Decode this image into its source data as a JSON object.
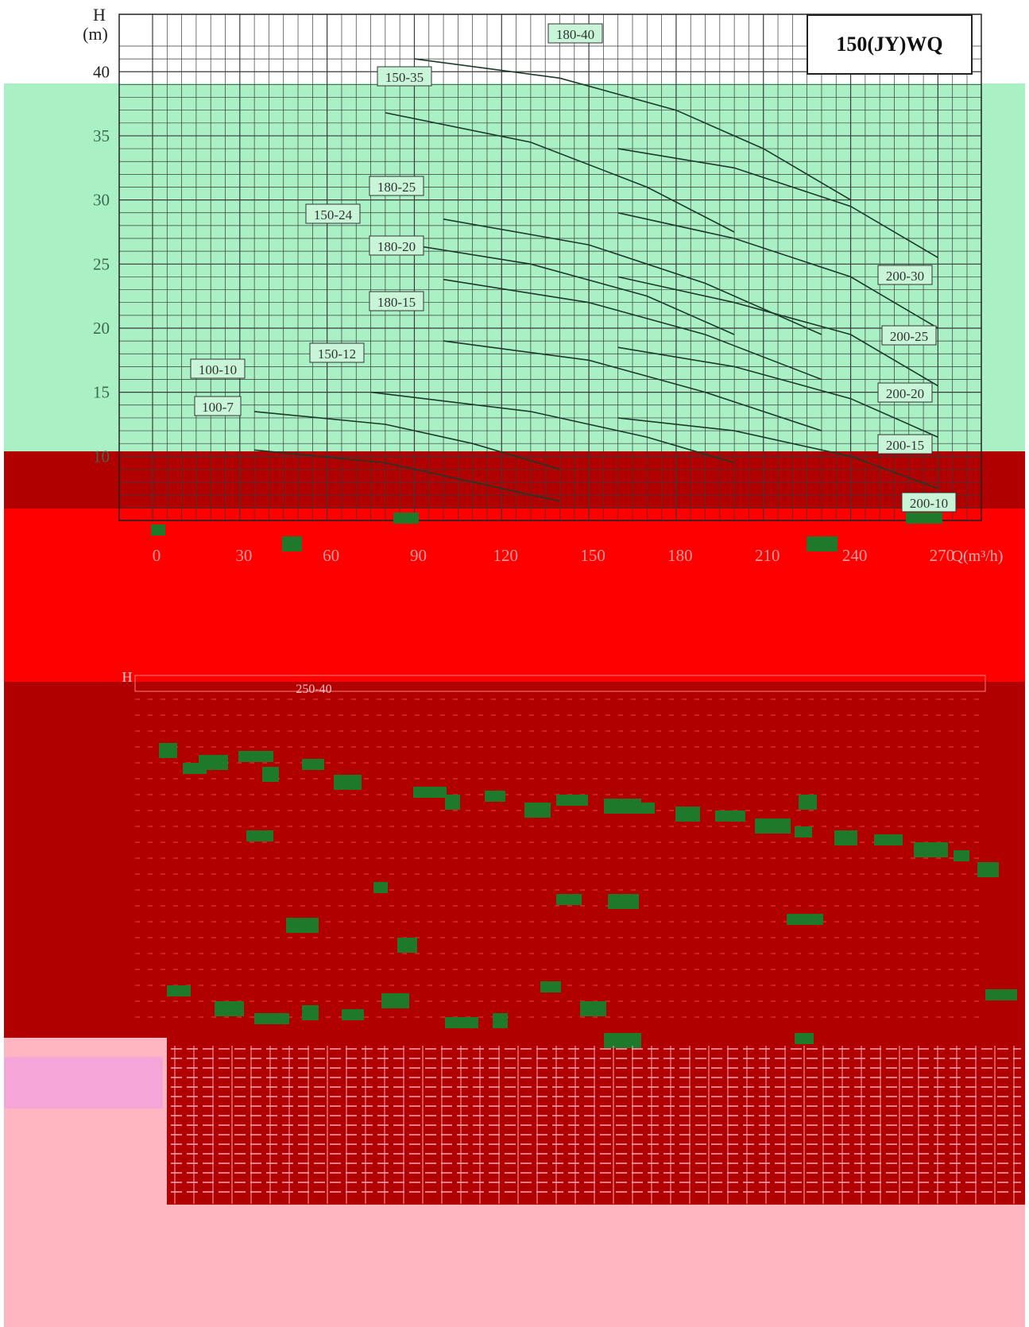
{
  "chart_data": {
    "type": "line",
    "title": "150(JY)WQ",
    "ylabel_top": "H",
    "ylabel_bottom": "(m)",
    "xlabel": "Q(m³/h)",
    "x_ticks": [
      "0",
      "30",
      "60",
      "90",
      "120",
      "150",
      "180",
      "210",
      "240",
      "270"
    ],
    "y_ticks": [
      "40",
      "35",
      "30",
      "25",
      "20",
      "15",
      "10"
    ],
    "xlim": [
      0,
      280
    ],
    "ylim": [
      5,
      42
    ],
    "grid": true,
    "series": [
      {
        "name": "180-40",
        "x": [
          90,
          140,
          180,
          210,
          240
        ],
        "y": [
          41,
          39.5,
          37,
          34,
          30
        ]
      },
      {
        "name": "150-35",
        "x": [
          80,
          130,
          170,
          200
        ],
        "y": [
          36.8,
          34.5,
          31,
          27.5
        ]
      },
      {
        "name": "180-25",
        "x": [
          100,
          150,
          190,
          230
        ],
        "y": [
          28.5,
          26.5,
          23.5,
          19.5
        ]
      },
      {
        "name": "150-24",
        "x": [
          75,
          130,
          170,
          200
        ],
        "y": [
          27,
          25,
          22.5,
          19.5
        ]
      },
      {
        "name": "180-20",
        "x": [
          100,
          150,
          190,
          230
        ],
        "y": [
          23.8,
          22,
          19.5,
          16
        ]
      },
      {
        "name": "180-15",
        "x": [
          100,
          150,
          190,
          230
        ],
        "y": [
          19,
          17.5,
          15,
          12
        ]
      },
      {
        "name": "150-12",
        "x": [
          75,
          130,
          170,
          200
        ],
        "y": [
          15,
          13.5,
          11.5,
          9.5
        ]
      },
      {
        "name": "100-10",
        "x": [
          35,
          80,
          110,
          140
        ],
        "y": [
          13.5,
          12.5,
          11,
          9
        ]
      },
      {
        "name": "100-7",
        "x": [
          35,
          80,
          110,
          140
        ],
        "y": [
          10.5,
          9.5,
          8,
          6.5
        ]
      },
      {
        "name": "200-30",
        "x": [
          160,
          200,
          240,
          270
        ],
        "y": [
          34,
          32.5,
          29.5,
          25.5
        ]
      },
      {
        "name": "200-25",
        "x": [
          160,
          200,
          240,
          270
        ],
        "y": [
          29,
          27,
          24,
          20
        ]
      },
      {
        "name": "200-20",
        "x": [
          160,
          200,
          240,
          270
        ],
        "y": [
          24,
          22,
          19.5,
          15.5
        ]
      },
      {
        "name": "200-15",
        "x": [
          160,
          200,
          240,
          270
        ],
        "y": [
          18.5,
          17,
          14.5,
          11.5
        ]
      },
      {
        "name": "200-10",
        "x": [
          160,
          200,
          240,
          270
        ],
        "y": [
          13,
          12,
          10,
          7.5
        ]
      }
    ]
  },
  "lower_chart": {
    "ylabel_top": "H",
    "curve_labels": [
      "250-40"
    ]
  },
  "colors": {
    "band_green": "#a9f0c4",
    "band_red": "#ff0000",
    "band_darkred": "#b00000",
    "band_pink": "#ffb6c1",
    "grid": "#3a3a3a",
    "curve": "#222222"
  }
}
